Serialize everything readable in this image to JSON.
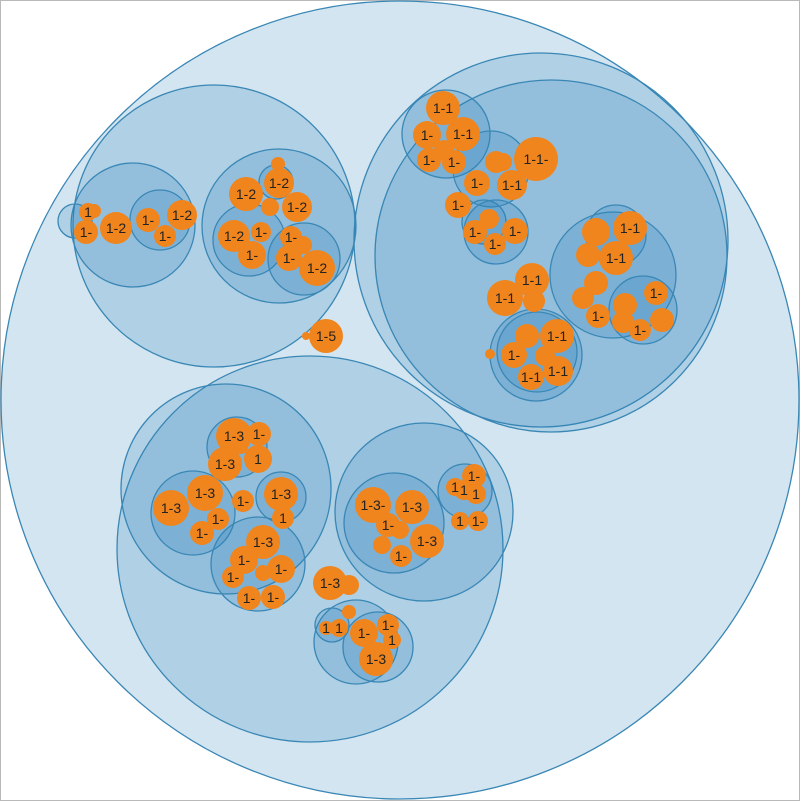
{
  "colors": {
    "group_fill": "rgba(33,126,186,0.20)",
    "group_stroke": "#3a87b5",
    "leaf_fill": "#f0841d",
    "label": "#222222",
    "frame": "#b9b9b9"
  },
  "labels": {
    "l1a": "1-2",
    "l1b": "1-2",
    "l1c": "1-",
    "l1d": "1-2",
    "l1e": "1-",
    "l1f": "1",
    "l2a": "1-2",
    "l2b": "1-2",
    "l2c": "1-2",
    "l2d": "1-2",
    "l2e": "1-",
    "l2f": "1-2",
    "l2g": "1-",
    "l3a": "1-1",
    "l3b": "1-",
    "l3c": "1-1",
    "l3d": "1-",
    "l3e": "1-1",
    "l3f": "1-1-",
    "l3g": "1-1",
    "l3h": "1-",
    "l3i": "1-",
    "l3j": "1-",
    "l3k": "1-",
    "l4a": "1-1",
    "l4b": "1-1",
    "l4c": "1-1",
    "l4d": "1-1",
    "l4e": "1-",
    "l4f": "1-",
    "l4g": "1-",
    "l5a": "1-1",
    "l5b": "1-",
    "l5c": "1-1",
    "l5d": "1-1",
    "l6a": "1-3",
    "l6b": "1-",
    "l6c": "1-3",
    "l6d": "1",
    "l6e": "1-3",
    "l6f": "1-3",
    "l6g": "1-",
    "l6h": "1-3",
    "l6i": "1-",
    "l6j": "1-3",
    "l6k": "1-",
    "l6l": "1-",
    "l7a": "1-3-",
    "l7b": "1-3",
    "l7c": "1-3",
    "l7d": "1-",
    "l7e": "1-",
    "l7f": "1-",
    "l7g": "1",
    "l8a": "1-3",
    "l8b": "1-",
    "l8c": "1-3",
    "l8d": "1",
    "l9a": "1-5"
  }
}
